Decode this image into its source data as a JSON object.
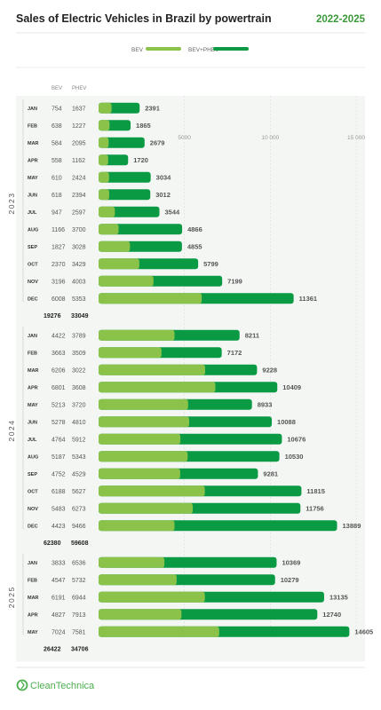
{
  "header": {
    "title": "Sales of Electric Vehicles in Brazil by powertrain",
    "range": "2022-2025"
  },
  "footer": {
    "brand": "CleanTechnica"
  },
  "colors": {
    "bev": "#8BC34A",
    "phev": "#0A9A44",
    "accent": "#4CAF50",
    "year_band": "#f4f6f4",
    "grid": "#dcdcdc"
  },
  "chart_data": {
    "type": "bar",
    "stacked": true,
    "orientation": "horizontal",
    "legend": [
      {
        "name": "BEV",
        "key": "bev"
      },
      {
        "name": "BEV+PHEV",
        "key": "phev"
      }
    ],
    "legend_position": "top-center",
    "column_headers": {
      "bev": "BEV",
      "phev": "PHEV"
    },
    "xticks": [
      {
        "value": 5000,
        "label": "5000"
      },
      {
        "value": 10000,
        "label": "10 000"
      },
      {
        "value": 15000,
        "label": "15 000"
      }
    ],
    "xlim": [
      0,
      15500
    ],
    "grid": true,
    "groups": [
      {
        "year": "2023",
        "totals": {
          "bev": "19276",
          "phev": "33049"
        },
        "rows": [
          {
            "month": "JAN",
            "bev": 754,
            "phev": 1637,
            "total": 2391
          },
          {
            "month": "FEB",
            "bev": 638,
            "phev": 1227,
            "total": 1865
          },
          {
            "month": "MAR",
            "bev": 584,
            "phev": 2095,
            "total": 2679
          },
          {
            "month": "APR",
            "bev": 558,
            "phev": 1162,
            "total": 1720
          },
          {
            "month": "MAY",
            "bev": 610,
            "phev": 2424,
            "total": 3034
          },
          {
            "month": "JUN",
            "bev": 618,
            "phev": 2394,
            "total": 3012
          },
          {
            "month": "JUL",
            "bev": 947,
            "phev": 2597,
            "total": 3544
          },
          {
            "month": "AUG",
            "bev": 1166,
            "phev": 3700,
            "total": 4866
          },
          {
            "month": "SEP",
            "bev": 1827,
            "phev": 3028,
            "total": 4855
          },
          {
            "month": "OCT",
            "bev": 2370,
            "phev": 3429,
            "total": 5799
          },
          {
            "month": "NOV",
            "bev": 3196,
            "phev": 4003,
            "total": 7199
          },
          {
            "month": "DEC",
            "bev": 6008,
            "phev": 5353,
            "total": 11361
          }
        ]
      },
      {
        "year": "2024",
        "totals": {
          "bev": "62380",
          "phev": "59608"
        },
        "rows": [
          {
            "month": "JAN",
            "bev": 4422,
            "phev": 3789,
            "total": 8211
          },
          {
            "month": "FEB",
            "bev": 3663,
            "phev": 3509,
            "total": 7172
          },
          {
            "month": "MAR",
            "bev": 6206,
            "phev": 3022,
            "total": 9228
          },
          {
            "month": "APR",
            "bev": 6801,
            "phev": 3608,
            "total": 10409
          },
          {
            "month": "MAY",
            "bev": 5213,
            "phev": 3720,
            "total": 8933
          },
          {
            "month": "JUN",
            "bev": 5278,
            "phev": 4810,
            "total": 10088
          },
          {
            "month": "JUL",
            "bev": 4764,
            "phev": 5912,
            "total": 10676
          },
          {
            "month": "AUG",
            "bev": 5187,
            "phev": 5343,
            "total": 10530
          },
          {
            "month": "SEP",
            "bev": 4752,
            "phev": 4529,
            "total": 9281
          },
          {
            "month": "OCT",
            "bev": 6188,
            "phev": 5627,
            "total": 11815
          },
          {
            "month": "NOV",
            "bev": 5483,
            "phev": 6273,
            "total": 11756
          },
          {
            "month": "DEC",
            "bev": 4423,
            "phev": 9466,
            "total": 13889
          }
        ]
      },
      {
        "year": "2025",
        "totals": {
          "bev": "26422",
          "phev": "34706"
        },
        "rows": [
          {
            "month": "JAN",
            "bev": 3833,
            "phev": 6536,
            "total": 10369
          },
          {
            "month": "FEB",
            "bev": 4547,
            "phev": 5732,
            "total": 10279
          },
          {
            "month": "MAR",
            "bev": 6191,
            "phev": 6944,
            "total": 13135
          },
          {
            "month": "APR",
            "bev": 4827,
            "phev": 7913,
            "total": 12740
          },
          {
            "month": "MAY",
            "bev": 7024,
            "phev": 7581,
            "total": 14605
          }
        ]
      }
    ]
  }
}
